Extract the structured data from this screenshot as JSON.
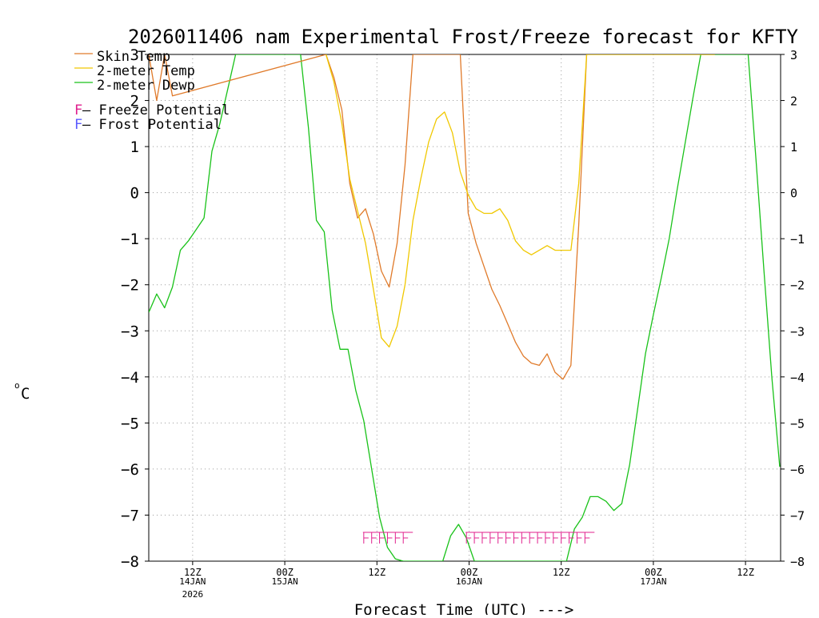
{
  "chart_data": {
    "type": "line",
    "title": "2026011406 nam Experimental Frost/Freeze forecast for KFTY",
    "xlabel": "Forecast Time (UTC) --->",
    "ylabel_unit": "°C",
    "ylabel_degree": "o",
    "ylabel_letter": "C",
    "ylim": [
      -8,
      3
    ],
    "xlim": [
      3,
      75
    ],
    "grid": true,
    "yticks": [
      3,
      2,
      1,
      0,
      -1,
      -2,
      -3,
      -4,
      -5,
      -6,
      -7,
      -8
    ],
    "ytick_labels": [
      "3",
      "2",
      "1",
      "0",
      "−1",
      "−2",
      "−3",
      "−4",
      "−5",
      "−6",
      "−7",
      "−8"
    ],
    "xticks": [
      {
        "hour": 8,
        "label": "12Z",
        "sub": "14JAN",
        "sub2": "2026"
      },
      {
        "hour": 18.5,
        "label": "00Z",
        "sub": "15JAN",
        "sub2": ""
      },
      {
        "hour": 29,
        "label": "12Z",
        "sub": "",
        "sub2": ""
      },
      {
        "hour": 39.5,
        "label": "00Z",
        "sub": "16JAN",
        "sub2": ""
      },
      {
        "hour": 50,
        "label": "12Z",
        "sub": "",
        "sub2": ""
      },
      {
        "hour": 60.5,
        "label": "00Z",
        "sub": "17JAN",
        "sub2": ""
      },
      {
        "hour": 71,
        "label": "12Z",
        "sub": "",
        "sub2": ""
      }
    ],
    "series": [
      {
        "name": "Skin Temp",
        "legend_label": "Skin Temp",
        "color": "#e07a2a",
        "x": [
          3,
          3.9,
          4.8,
          5.7,
          23.2,
          24.1,
          25,
          25.9,
          26.8,
          27.7,
          28.6,
          29.5,
          30.4,
          31.3,
          32.2,
          33.1,
          38.5,
          39.4,
          40.3,
          41.2,
          42.1,
          43,
          43.9,
          44.8,
          45.7,
          46.6,
          47.5,
          48.4,
          49.3,
          50.2,
          51.1,
          52,
          52.9,
          53.8,
          67.5
        ],
        "y": [
          3,
          2,
          3,
          2.1,
          3,
          2.5,
          1.8,
          0.2,
          -0.55,
          -0.35,
          -0.9,
          -1.7,
          -2.05,
          -1.1,
          0.6,
          3,
          3,
          -0.45,
          -1.1,
          -1.6,
          -2.1,
          -2.45,
          -2.85,
          -3.25,
          -3.55,
          -3.7,
          -3.75,
          -3.5,
          -3.9,
          -4.05,
          -3.75,
          -0.7,
          3,
          3,
          3
        ]
      },
      {
        "name": "2-meter Temp",
        "legend_label": "2-meter Temp",
        "color": "#f0c800",
        "x": [
          23.2,
          24.1,
          25,
          25.9,
          26.8,
          27.7,
          28.6,
          29.5,
          30.4,
          31.3,
          32.2,
          33.1,
          34,
          34.9,
          35.8,
          36.7,
          37.6,
          38.5,
          39.4,
          40.3,
          41.2,
          42.1,
          43,
          43.9,
          44.8,
          45.7,
          46.6,
          47.5,
          48.4,
          49.3,
          50.2,
          51.1,
          52,
          52.9,
          53.8,
          67.5
        ],
        "y": [
          3,
          2.4,
          1.5,
          0.3,
          -0.4,
          -1.1,
          -2.1,
          -3.15,
          -3.35,
          -2.9,
          -2.0,
          -0.6,
          0.3,
          1.1,
          1.6,
          1.75,
          1.3,
          0.45,
          -0.05,
          -0.35,
          -0.45,
          -0.45,
          -0.35,
          -0.6,
          -1.05,
          -1.25,
          -1.35,
          -1.25,
          -1.15,
          -1.25,
          -1.25,
          -1.25,
          0.2,
          3,
          3,
          3
        ]
      },
      {
        "name": "2-meter Dewp",
        "legend_label": "2-meter Dewp",
        "color": "#19c219",
        "x": [
          3,
          3.9,
          4.8,
          5.7,
          6.6,
          7.5,
          8.4,
          9.3,
          10.2,
          11.1,
          12,
          12.9,
          20.3,
          21.2,
          22.1,
          23,
          23.9,
          24.8,
          25.7,
          26.6,
          27.5,
          28.4,
          29.3,
          30.2,
          31.1,
          32.0,
          36.5,
          37.4,
          38.3,
          39.2,
          40.1,
          41.0,
          41.9,
          50.6,
          51.5,
          52.4,
          53.3,
          54.2,
          55.1,
          56.0,
          56.9,
          57.8,
          58.7,
          59.6,
          60.5,
          61.4,
          62.3,
          63.2,
          64.1,
          65.0,
          65.9,
          66.8,
          67.7,
          71.3,
          72.2,
          73.1,
          74.0,
          74.9
        ],
        "y": [
          -2.6,
          -2.2,
          -2.5,
          -2.05,
          -1.25,
          -1.05,
          -0.8,
          -0.55,
          0.9,
          1.5,
          2.25,
          3,
          3,
          1.4,
          -0.6,
          -0.85,
          -2.55,
          -3.4,
          -3.4,
          -4.3,
          -4.95,
          -6.0,
          -7.05,
          -7.7,
          -7.95,
          -8.0,
          -8.0,
          -7.45,
          -7.2,
          -7.5,
          -8.0,
          -8.0,
          -8.0,
          -8.0,
          -7.3,
          -7.05,
          -6.6,
          -6.6,
          -6.7,
          -6.9,
          -6.75,
          -5.9,
          -4.7,
          -3.5,
          -2.65,
          -1.85,
          -1.0,
          0.05,
          1.05,
          2.05,
          3.0,
          3.0,
          3.0,
          3.0,
          0.7,
          -1.7,
          -4.0,
          -5.95
        ]
      }
    ],
    "potential_markers": [
      {
        "kind": "Freeze",
        "label": "FFFFFF",
        "hours": [
          27.5,
          28.4,
          29.3,
          30.2,
          31.1,
          32.0
        ]
      },
      {
        "kind": "Freeze",
        "label": "FFFFFFFFFFFFFFFF",
        "hours": [
          39.2,
          40.1,
          41.0,
          41.9,
          42.8,
          43.7,
          44.6,
          45.5,
          46.4,
          47.3,
          48.2,
          49.1,
          50.0,
          50.9,
          51.8,
          52.7
        ]
      }
    ],
    "legend": {
      "placement": "top-left",
      "entries": [
        {
          "label": "Skin Temp",
          "color": "#e07a2a"
        },
        {
          "label": "2-meter Temp",
          "color": "#f0c800"
        },
        {
          "label": "2-meter Dewp",
          "color": "#19c219"
        }
      ],
      "potential_entries": [
        {
          "letter": "F",
          "text": " – Freeze Potential",
          "color": "#e0208e"
        },
        {
          "letter": "F",
          "text": " – Frost Potential",
          "color": "#5a5aff"
        }
      ]
    }
  }
}
